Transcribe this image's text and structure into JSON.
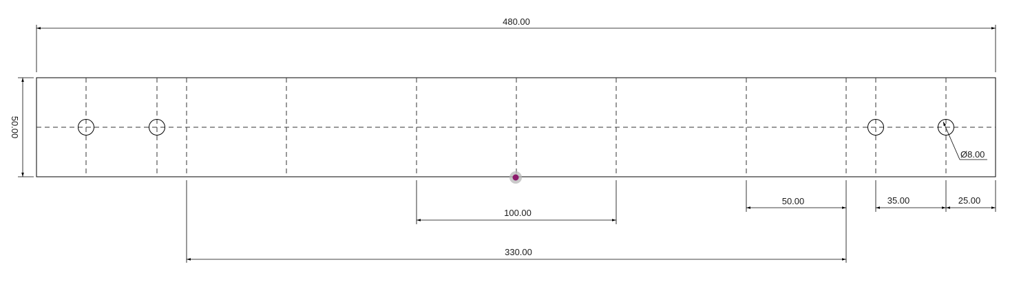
{
  "drawing": {
    "dim_overall_length": "480.00",
    "dim_height": "50.00",
    "dim_100": "100.00",
    "dim_330": "330.00",
    "dim_50": "50.00",
    "dim_35": "35.00",
    "dim_25": "25.00",
    "dim_hole_diameter": "Ø8.00"
  },
  "colors": {
    "snap_marker_fill": "#8b1a6b",
    "snap_marker_halo": "#b8b8b8"
  }
}
